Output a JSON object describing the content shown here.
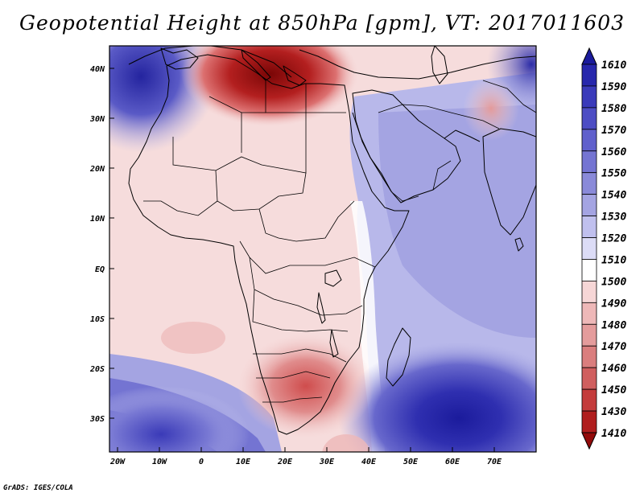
{
  "title": "Geopotential Height at 850hPa [gpm], VT: 2017011603",
  "credit": "GrADS: IGES/COLA",
  "map": {
    "lat_labels": [
      "40N",
      "30N",
      "20N",
      "10N",
      "EQ",
      "10S",
      "20S",
      "30S"
    ],
    "lon_labels": [
      "20W",
      "10W",
      "0",
      "10E",
      "20E",
      "30E",
      "40E",
      "50E",
      "60E",
      "70E"
    ],
    "extent": {
      "lon": [
        -22,
        80
      ],
      "lat": [
        -37,
        45
      ]
    },
    "mean_level": 1500
  },
  "colorbar": {
    "labels": [
      "1610",
      "1590",
      "1580",
      "1570",
      "1560",
      "1550",
      "1540",
      "1530",
      "1520",
      "1510",
      "1500",
      "1490",
      "1480",
      "1470",
      "1460",
      "1450",
      "1430",
      "1410"
    ],
    "colors": [
      "#1b1b9c",
      "#2727ac",
      "#3a3aba",
      "#4d4dc4",
      "#6060cc",
      "#7474d2",
      "#8a8ad9",
      "#a4a4e2",
      "#c0c0ee",
      "#dcdcf6",
      "#ffffff",
      "#f6d6d6",
      "#eeb8b8",
      "#e49c9c",
      "#da7e7e",
      "#d05f5f",
      "#c43c3c",
      "#b01e1e",
      "#920a0a"
    ]
  },
  "colors": {
    "high": "#3030b0",
    "low": "#a01818",
    "coast": "#000000"
  }
}
